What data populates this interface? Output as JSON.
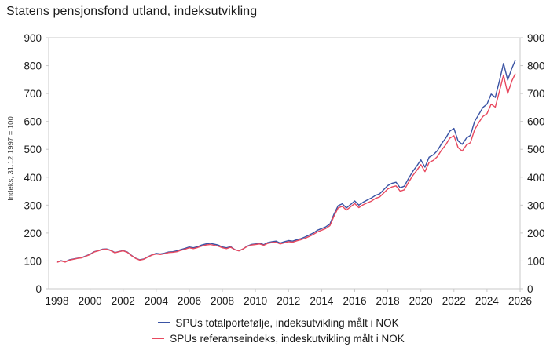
{
  "title": "Statens pensjonsfond utland, indeksutvikling",
  "colors": {
    "portfolio_line": "#3a53a4",
    "reference_line": "#e8495f",
    "frame": "#c9c9c9",
    "text": "#1a1a1a"
  },
  "chart_data": {
    "type": "line",
    "title": "Statens pensjonsfond utland, indeksutvikling",
    "ylabel": "Indeks, 31.12.1997 = 100",
    "xlabel": "",
    "grid": false,
    "legend_position": "bottom",
    "xlim": [
      1997.5,
      2026
    ],
    "ylim": [
      0,
      900
    ],
    "x_ticks": [
      1998,
      2000,
      2002,
      2004,
      2006,
      2008,
      2010,
      2012,
      2014,
      2016,
      2018,
      2020,
      2022,
      2024,
      2026
    ],
    "y_ticks": [
      0,
      100,
      200,
      300,
      400,
      500,
      600,
      700,
      800,
      900
    ],
    "y_axis_right": true,
    "frame_color": "#c9c9c9",
    "x": [
      1998,
      1998.25,
      1998.5,
      1998.75,
      1999,
      1999.25,
      1999.5,
      1999.75,
      2000,
      2000.25,
      2000.5,
      2000.75,
      2001,
      2001.25,
      2001.5,
      2001.75,
      2002,
      2002.25,
      2002.5,
      2002.75,
      2003,
      2003.25,
      2003.5,
      2003.75,
      2004,
      2004.25,
      2004.5,
      2004.75,
      2005,
      2005.25,
      2005.5,
      2005.75,
      2006,
      2006.25,
      2006.5,
      2006.75,
      2007,
      2007.25,
      2007.5,
      2007.75,
      2008,
      2008.25,
      2008.5,
      2008.75,
      2009,
      2009.25,
      2009.5,
      2009.75,
      2010,
      2010.25,
      2010.5,
      2010.75,
      2011,
      2011.25,
      2011.5,
      2011.75,
      2012,
      2012.25,
      2012.5,
      2012.75,
      2013,
      2013.25,
      2013.5,
      2013.75,
      2014,
      2014.25,
      2014.5,
      2014.75,
      2015,
      2015.25,
      2015.5,
      2015.75,
      2016,
      2016.25,
      2016.5,
      2016.75,
      2017,
      2017.25,
      2017.5,
      2017.75,
      2018,
      2018.25,
      2018.5,
      2018.75,
      2019,
      2019.25,
      2019.5,
      2019.75,
      2020,
      2020.25,
      2020.5,
      2020.75,
      2021,
      2021.25,
      2021.5,
      2021.75,
      2022,
      2022.25,
      2022.5,
      2022.75,
      2023,
      2023.25,
      2023.5,
      2023.75,
      2024,
      2024.25,
      2024.5,
      2024.75,
      2025,
      2025.25,
      2025.5,
      2025.7
    ],
    "series": [
      {
        "name": "SPUs totalportefølje, indeksutvikling målt i NOK",
        "color": "#3a53a4",
        "values": [
          96,
          101,
          97,
          104,
          107,
          110,
          112,
          118,
          124,
          133,
          137,
          142,
          143,
          138,
          130,
          134,
          137,
          132,
          120,
          110,
          104,
          107,
          115,
          122,
          127,
          125,
          128,
          132,
          133,
          136,
          141,
          145,
          150,
          147,
          151,
          157,
          161,
          163,
          160,
          157,
          150,
          147,
          151,
          141,
          136,
          143,
          153,
          159,
          161,
          164,
          158,
          166,
          169,
          171,
          164,
          169,
          173,
          171,
          176,
          180,
          186,
          193,
          200,
          210,
          216,
          222,
          232,
          268,
          298,
          305,
          290,
          302,
          315,
          300,
          310,
          318,
          325,
          335,
          340,
          355,
          370,
          378,
          382,
          362,
          368,
          395,
          420,
          440,
          462,
          436,
          472,
          480,
          495,
          520,
          540,
          565,
          575,
          530,
          518,
          540,
          550,
          600,
          625,
          650,
          662,
          698,
          686,
          745,
          808,
          748,
          790,
          818
        ]
      },
      {
        "name": "SPUs referanseindeks, indeskutvikling målt i NOK",
        "color": "#e8495f",
        "values": [
          95,
          100,
          96,
          103,
          106,
          109,
          111,
          117,
          123,
          132,
          136,
          141,
          142,
          137,
          129,
          133,
          136,
          131,
          119,
          109,
          103,
          106,
          114,
          121,
          125,
          123,
          126,
          130,
          131,
          133,
          138,
          142,
          147,
          144,
          148,
          153,
          157,
          159,
          156,
          153,
          147,
          144,
          149,
          140,
          136,
          143,
          152,
          157,
          159,
          161,
          156,
          163,
          166,
          167,
          161,
          165,
          169,
          167,
          172,
          176,
          181,
          188,
          195,
          204,
          210,
          216,
          226,
          261,
          290,
          296,
          282,
          294,
          306,
          291,
          301,
          308,
          314,
          324,
          329,
          343,
          358,
          365,
          369,
          350,
          355,
          381,
          405,
          424,
          445,
          420,
          453,
          460,
          474,
          497,
          516,
          540,
          549,
          506,
          494,
          515,
          524,
          570,
          596,
          618,
          628,
          662,
          651,
          708,
          766,
          700,
          745,
          770
        ]
      }
    ]
  },
  "legend": {
    "items": [
      {
        "label": "SPUs totalportefølje, indeksutvikling målt i NOK"
      },
      {
        "label": "SPUs referanseindeks, indeskutvikling målt i NOK"
      }
    ]
  }
}
